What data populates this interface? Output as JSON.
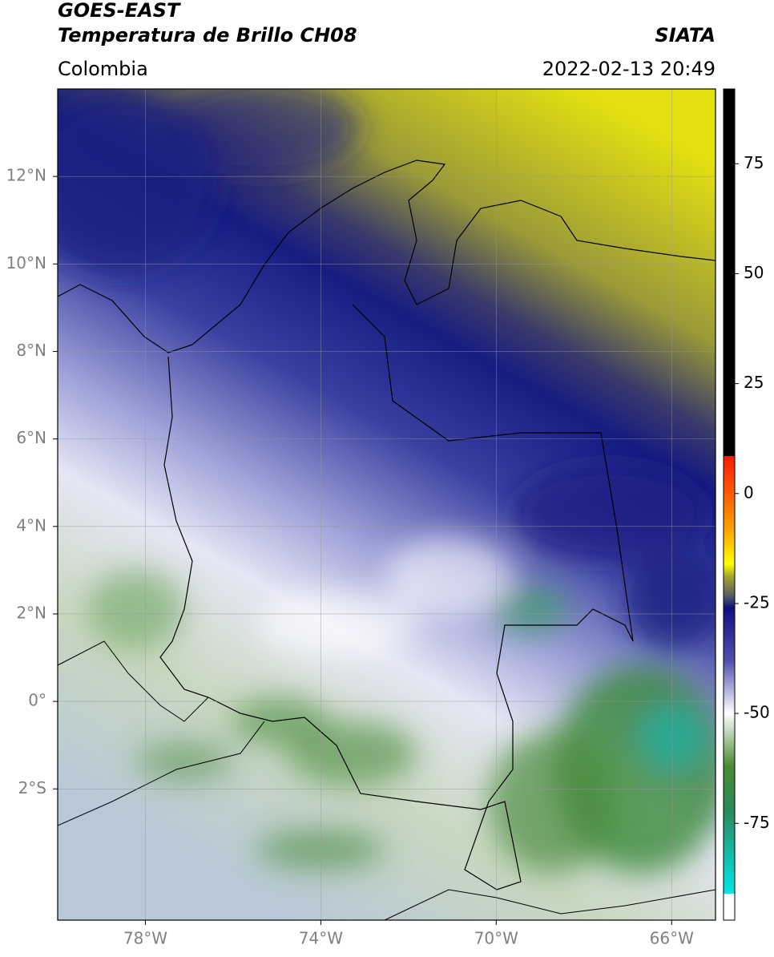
{
  "header": {
    "title": "GOES-EAST",
    "subtitle": "Temperatura de Brillo CH08",
    "region": "Colombia",
    "source": "SIATA",
    "datetime": "2022-02-13 20:49"
  },
  "map": {
    "lonlim": [
      -80,
      -65
    ],
    "latlim": [
      -5,
      14
    ],
    "xticks": [
      {
        "value": -78,
        "label": "78°W"
      },
      {
        "value": -74,
        "label": "74°W"
      },
      {
        "value": -70,
        "label": "70°W"
      },
      {
        "value": -66,
        "label": "66°W"
      }
    ],
    "yticks": [
      {
        "value": 12,
        "label": "12°N"
      },
      {
        "value": 10,
        "label": "10°N"
      },
      {
        "value": 8,
        "label": "8°N"
      },
      {
        "value": 6,
        "label": "6°N"
      },
      {
        "value": 4,
        "label": "4°N"
      },
      {
        "value": 2,
        "label": "2°N"
      },
      {
        "value": 0,
        "label": "0°"
      },
      {
        "value": -2,
        "label": "2°S"
      }
    ],
    "grid": true
  },
  "colorbar": {
    "lim": [
      -97,
      92
    ],
    "ticks": [
      75,
      50,
      25,
      0,
      -25,
      -50,
      -75
    ],
    "stops": [
      {
        "value": 92,
        "color": "#000000"
      },
      {
        "value": 8.5,
        "color": "#000000"
      },
      {
        "value": 8.5,
        "color": "#ff1a00"
      },
      {
        "value": 0,
        "color": "#ff5a00"
      },
      {
        "value": -8,
        "color": "#ffa000"
      },
      {
        "value": -16,
        "color": "#ffff00"
      },
      {
        "value": -19,
        "color": "#a0a030"
      },
      {
        "value": -23,
        "color": "#606060"
      },
      {
        "value": -26,
        "color": "#101080"
      },
      {
        "value": -38,
        "color": "#5050b0"
      },
      {
        "value": -50,
        "color": "#ffffff"
      },
      {
        "value": -62,
        "color": "#4a8a30"
      },
      {
        "value": -72,
        "color": "#2a8a5a"
      },
      {
        "value": -91,
        "color": "#00e8e8"
      },
      {
        "value": -91,
        "color": "#ffffff"
      },
      {
        "value": -97,
        "color": "#ffffff"
      }
    ]
  }
}
